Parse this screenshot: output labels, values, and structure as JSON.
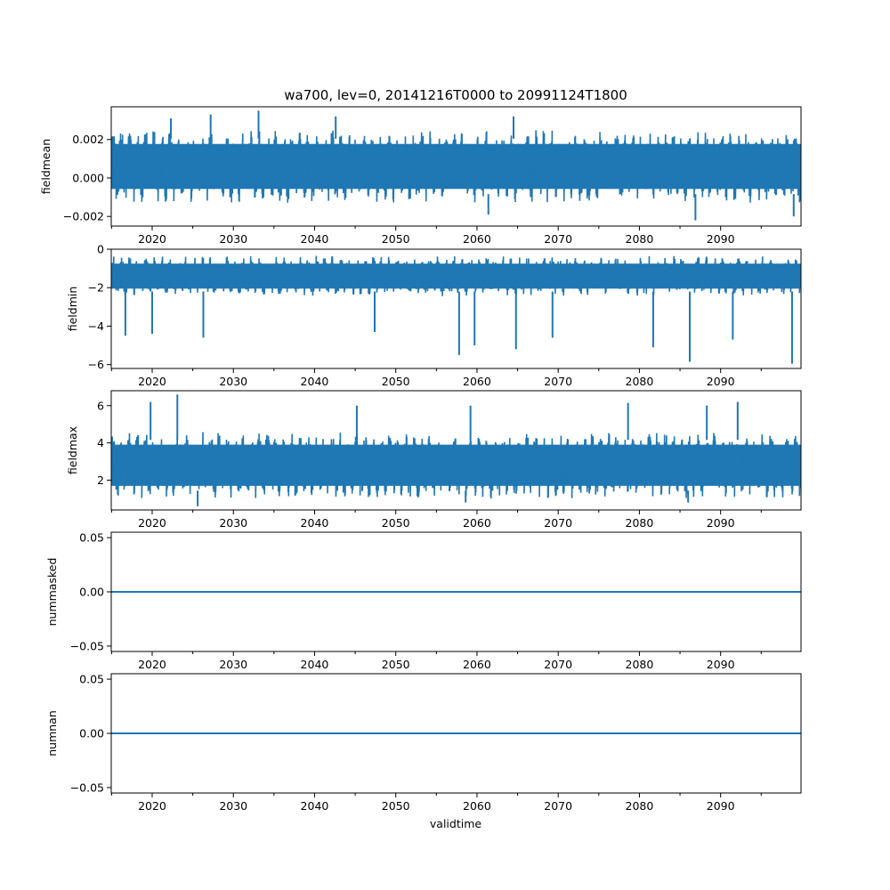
{
  "chart_data": {
    "type": "line",
    "title": "wa700, lev=0, 20141216T0000 to 20991124T1800",
    "xlabel": "validtime",
    "xlim": [
      2014.96,
      2099.9
    ],
    "x_ticks": [
      2020,
      2030,
      2040,
      2050,
      2060,
      2070,
      2080,
      2090
    ],
    "x_tick_labels": [
      "2020",
      "2030",
      "2040",
      "2050",
      "2060",
      "2070",
      "2080",
      "2090"
    ],
    "line_color": "#1f77b4",
    "panels": [
      {
        "name": "fieldmean",
        "ylabel": "fieldmean",
        "ylim": [
          -0.0025,
          0.0037
        ],
        "yticks": [
          -0.002,
          0.0,
          0.002
        ],
        "ytick_labels": [
          "−0.002",
          "0.000",
          "0.002"
        ],
        "band": {
          "low": -0.0012,
          "high": 0.0024
        },
        "summary": {
          "min": -0.0022,
          "max": 0.0035
        },
        "spikes": [
          {
            "x": 2033.1,
            "y": 0.0035
          },
          {
            "x": 2027.2,
            "y": 0.0033
          },
          {
            "x": 2042.6,
            "y": 0.0032
          },
          {
            "x": 2064.5,
            "y": 0.0032
          },
          {
            "x": 2022.3,
            "y": 0.0031
          },
          {
            "x": 2086.9,
            "y": -0.0022
          },
          {
            "x": 2099.0,
            "y": -0.002
          },
          {
            "x": 2061.4,
            "y": -0.0019
          }
        ]
      },
      {
        "name": "fieldmin",
        "ylabel": "fieldmin",
        "ylim": [
          -6.2,
          0.0
        ],
        "yticks": [
          -6,
          -4,
          -2,
          0
        ],
        "ytick_labels": [
          "−6",
          "−4",
          "−2",
          "0"
        ],
        "band": {
          "low": -2.4,
          "high": -0.4
        },
        "summary": {
          "min": -5.95,
          "max": -0.3
        },
        "spikes": [
          {
            "x": 2098.8,
            "y": -5.95
          },
          {
            "x": 2086.2,
            "y": -5.85
          },
          {
            "x": 2057.8,
            "y": -5.5
          },
          {
            "x": 2064.8,
            "y": -5.2
          },
          {
            "x": 2081.7,
            "y": -5.1
          },
          {
            "x": 2059.7,
            "y": -5.0
          },
          {
            "x": 2091.5,
            "y": -4.7
          },
          {
            "x": 2026.3,
            "y": -4.6
          },
          {
            "x": 2069.3,
            "y": -4.6
          },
          {
            "x": 2016.7,
            "y": -4.5
          },
          {
            "x": 2020.0,
            "y": -4.4
          },
          {
            "x": 2047.4,
            "y": -4.3
          }
        ]
      },
      {
        "name": "fieldmax",
        "ylabel": "fieldmax",
        "ylim": [
          0.4,
          6.8
        ],
        "yticks": [
          2,
          4,
          6
        ],
        "ytick_labels": [
          "2",
          "4",
          "6"
        ],
        "band": {
          "low": 1.1,
          "high": 4.5
        },
        "summary": {
          "min": 0.55,
          "max": 6.6
        },
        "spikes": [
          {
            "x": 2023.1,
            "y": 6.6
          },
          {
            "x": 2019.8,
            "y": 6.2
          },
          {
            "x": 2092.1,
            "y": 6.2
          },
          {
            "x": 2078.6,
            "y": 6.15
          },
          {
            "x": 2045.2,
            "y": 6.0
          },
          {
            "x": 2059.2,
            "y": 6.0
          },
          {
            "x": 2088.3,
            "y": 6.0
          },
          {
            "x": 2025.6,
            "y": 0.6
          },
          {
            "x": 2058.6,
            "y": 0.8
          },
          {
            "x": 2086.0,
            "y": 0.8
          }
        ]
      },
      {
        "name": "nummasked",
        "ylabel": "nummasked",
        "ylim": [
          -0.055,
          0.055
        ],
        "yticks": [
          -0.05,
          0.0,
          0.05
        ],
        "ytick_labels": [
          "−0.05",
          "0.00",
          "0.05"
        ],
        "constant": 0.0
      },
      {
        "name": "numnan",
        "ylabel": "numnan",
        "ylim": [
          -0.055,
          0.055
        ],
        "yticks": [
          -0.05,
          0.0,
          0.05
        ],
        "ytick_labels": [
          "−0.05",
          "0.00",
          "0.05"
        ],
        "constant": 0.0
      }
    ]
  }
}
